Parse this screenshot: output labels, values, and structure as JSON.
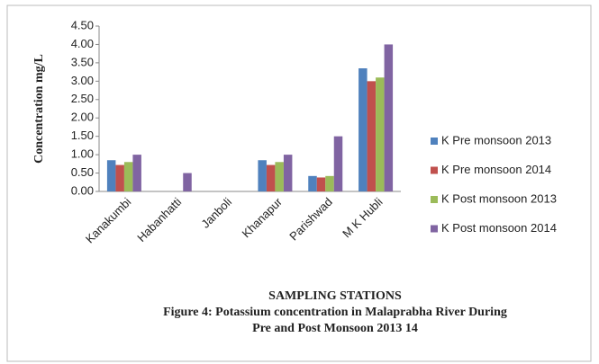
{
  "chart_data": {
    "type": "bar",
    "y_label": "Concentration mg/L",
    "x_label": "SAMPLING STATIONS",
    "caption": [
      "Figure 4: Potassium concentration in Malaprabha River During",
      "Pre and Post Monsoon 2013 14"
    ],
    "categories": [
      "Kanakumbi",
      "Habanhatti",
      "Janboli",
      "Khanapur",
      "Parishwad",
      "M K Hubli"
    ],
    "series": [
      {
        "name": "K Pre monsoon 2013",
        "color": "#4f81bd",
        "values": [
          0.85,
          0,
          0,
          0.85,
          0.42,
          3.35
        ]
      },
      {
        "name": "K Pre monsoon 2014",
        "color": "#c0504d",
        "values": [
          0.72,
          0,
          0,
          0.72,
          0.38,
          3.0
        ]
      },
      {
        "name": "K Post monsoon 2013",
        "color": "#9bbb59",
        "values": [
          0.8,
          0,
          0,
          0.8,
          0.42,
          3.1
        ]
      },
      {
        "name": "K Post monsoon 2014",
        "color": "#8064a2",
        "values": [
          1.0,
          0.5,
          0,
          1.0,
          1.5,
          4.0
        ]
      }
    ],
    "ylim": [
      0,
      4.5
    ],
    "yticks": [
      {
        "value": 0,
        "label": "0.00"
      },
      {
        "value": 0.5,
        "label": "0.50"
      },
      {
        "value": 1,
        "label": "1.00"
      },
      {
        "value": 1.5,
        "label": "1.50"
      },
      {
        "value": 2,
        "label": "2.00"
      },
      {
        "value": 2.5,
        "label": "2.50"
      },
      {
        "value": 3,
        "label": "3.00"
      },
      {
        "value": 3.5,
        "label": "3.50"
      },
      {
        "value": 4,
        "label": "4.00"
      },
      {
        "value": 4.5,
        "label": "4.50"
      }
    ],
    "legend": "right"
  }
}
